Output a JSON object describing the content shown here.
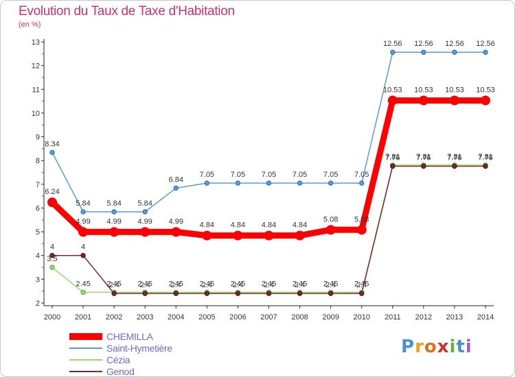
{
  "header": {
    "title": "Evolution du Taux de Taxe d'Habitation",
    "unit": "(en %)"
  },
  "chart_data": {
    "type": "line",
    "title": "Evolution du Taux de Taxe d'Habitation",
    "ylabel": "(en %)",
    "xlabel": "",
    "x": [
      "2000",
      "2001",
      "2002",
      "2003",
      "2004",
      "2005",
      "2006",
      "2007",
      "2008",
      "2009",
      "2010",
      "2011",
      "2012",
      "2013",
      "2014"
    ],
    "y_ticks": [
      "2",
      "3",
      "4",
      "5",
      "6",
      "7",
      "8",
      "9",
      "10",
      "11",
      "12",
      "13"
    ],
    "ylim": [
      2,
      13
    ],
    "grid": false,
    "legend_position": "bottom-left",
    "series": [
      {
        "name": "CHEMILLA",
        "color": "#ff0000",
        "values": [
          6.24,
          4.99,
          4.99,
          4.99,
          4.99,
          4.84,
          4.84,
          4.84,
          4.84,
          5.08,
          5.08,
          10.53,
          10.53,
          10.53,
          10.53
        ],
        "labels": [
          "6.24",
          "4.99",
          "4.99",
          "4.99",
          "4.99",
          "4.84",
          "4.84",
          "4.84",
          "4.84",
          "5.08",
          "5.08",
          "10.53",
          "10.53",
          "10.53",
          "10.53"
        ]
      },
      {
        "name": "Saint-Hymetière",
        "color": "#5b9bd5",
        "values": [
          8.34,
          5.84,
          5.84,
          5.84,
          6.84,
          7.05,
          7.05,
          7.05,
          7.05,
          7.05,
          7.05,
          12.56,
          12.56,
          12.56,
          12.56
        ],
        "labels": [
          "8.34",
          "5.84",
          "5.84",
          "5.84",
          "6.84",
          "7.05",
          "7.05",
          "7.05",
          "7.05",
          "7.05",
          "7.05",
          "12.56",
          "12.56",
          "12.56",
          "12.56"
        ]
      },
      {
        "name": "Cézia",
        "color": "#9bd873",
        "values": [
          3.5,
          2.45,
          2.45,
          2.45,
          2.45,
          2.45,
          2.45,
          2.45,
          2.45,
          2.45,
          2.45,
          7.81,
          7.81,
          7.81,
          7.81
        ],
        "labels": [
          "3.5",
          "2.45",
          "2.45",
          "2.45",
          "2.45",
          "2.45",
          "2.45",
          "2.45",
          "2.45",
          "2.45",
          "2.45",
          "7.81",
          "7.81",
          "7.81",
          "7.81"
        ]
      },
      {
        "name": "Genod",
        "color": "#7a2a2a",
        "values": [
          4,
          4,
          2.4,
          2.4,
          2.4,
          2.4,
          2.4,
          2.4,
          2.4,
          2.4,
          2.4,
          7.76,
          7.76,
          7.76,
          7.76
        ],
        "labels": [
          "4",
          "4",
          "2.4",
          "2.4",
          "2.4",
          "2.4",
          "2.4",
          "2.4",
          "2.4",
          "2.4",
          "2.4",
          "7.76",
          "7.76",
          "7.76",
          "7.76"
        ]
      }
    ]
  },
  "legend": {
    "items": [
      "CHEMILLA",
      "Saint-Hymetière",
      "Cézia",
      "Genod"
    ]
  },
  "brand": {
    "text": "Proxiti",
    "letters": [
      "P",
      "r",
      "o",
      "x",
      "i",
      "t",
      "i"
    ],
    "colors": [
      "#4a90d9",
      "#f0a020",
      "#e07020",
      "#d03030",
      "#60b040",
      "#4a90d9",
      "#a060c0"
    ]
  }
}
